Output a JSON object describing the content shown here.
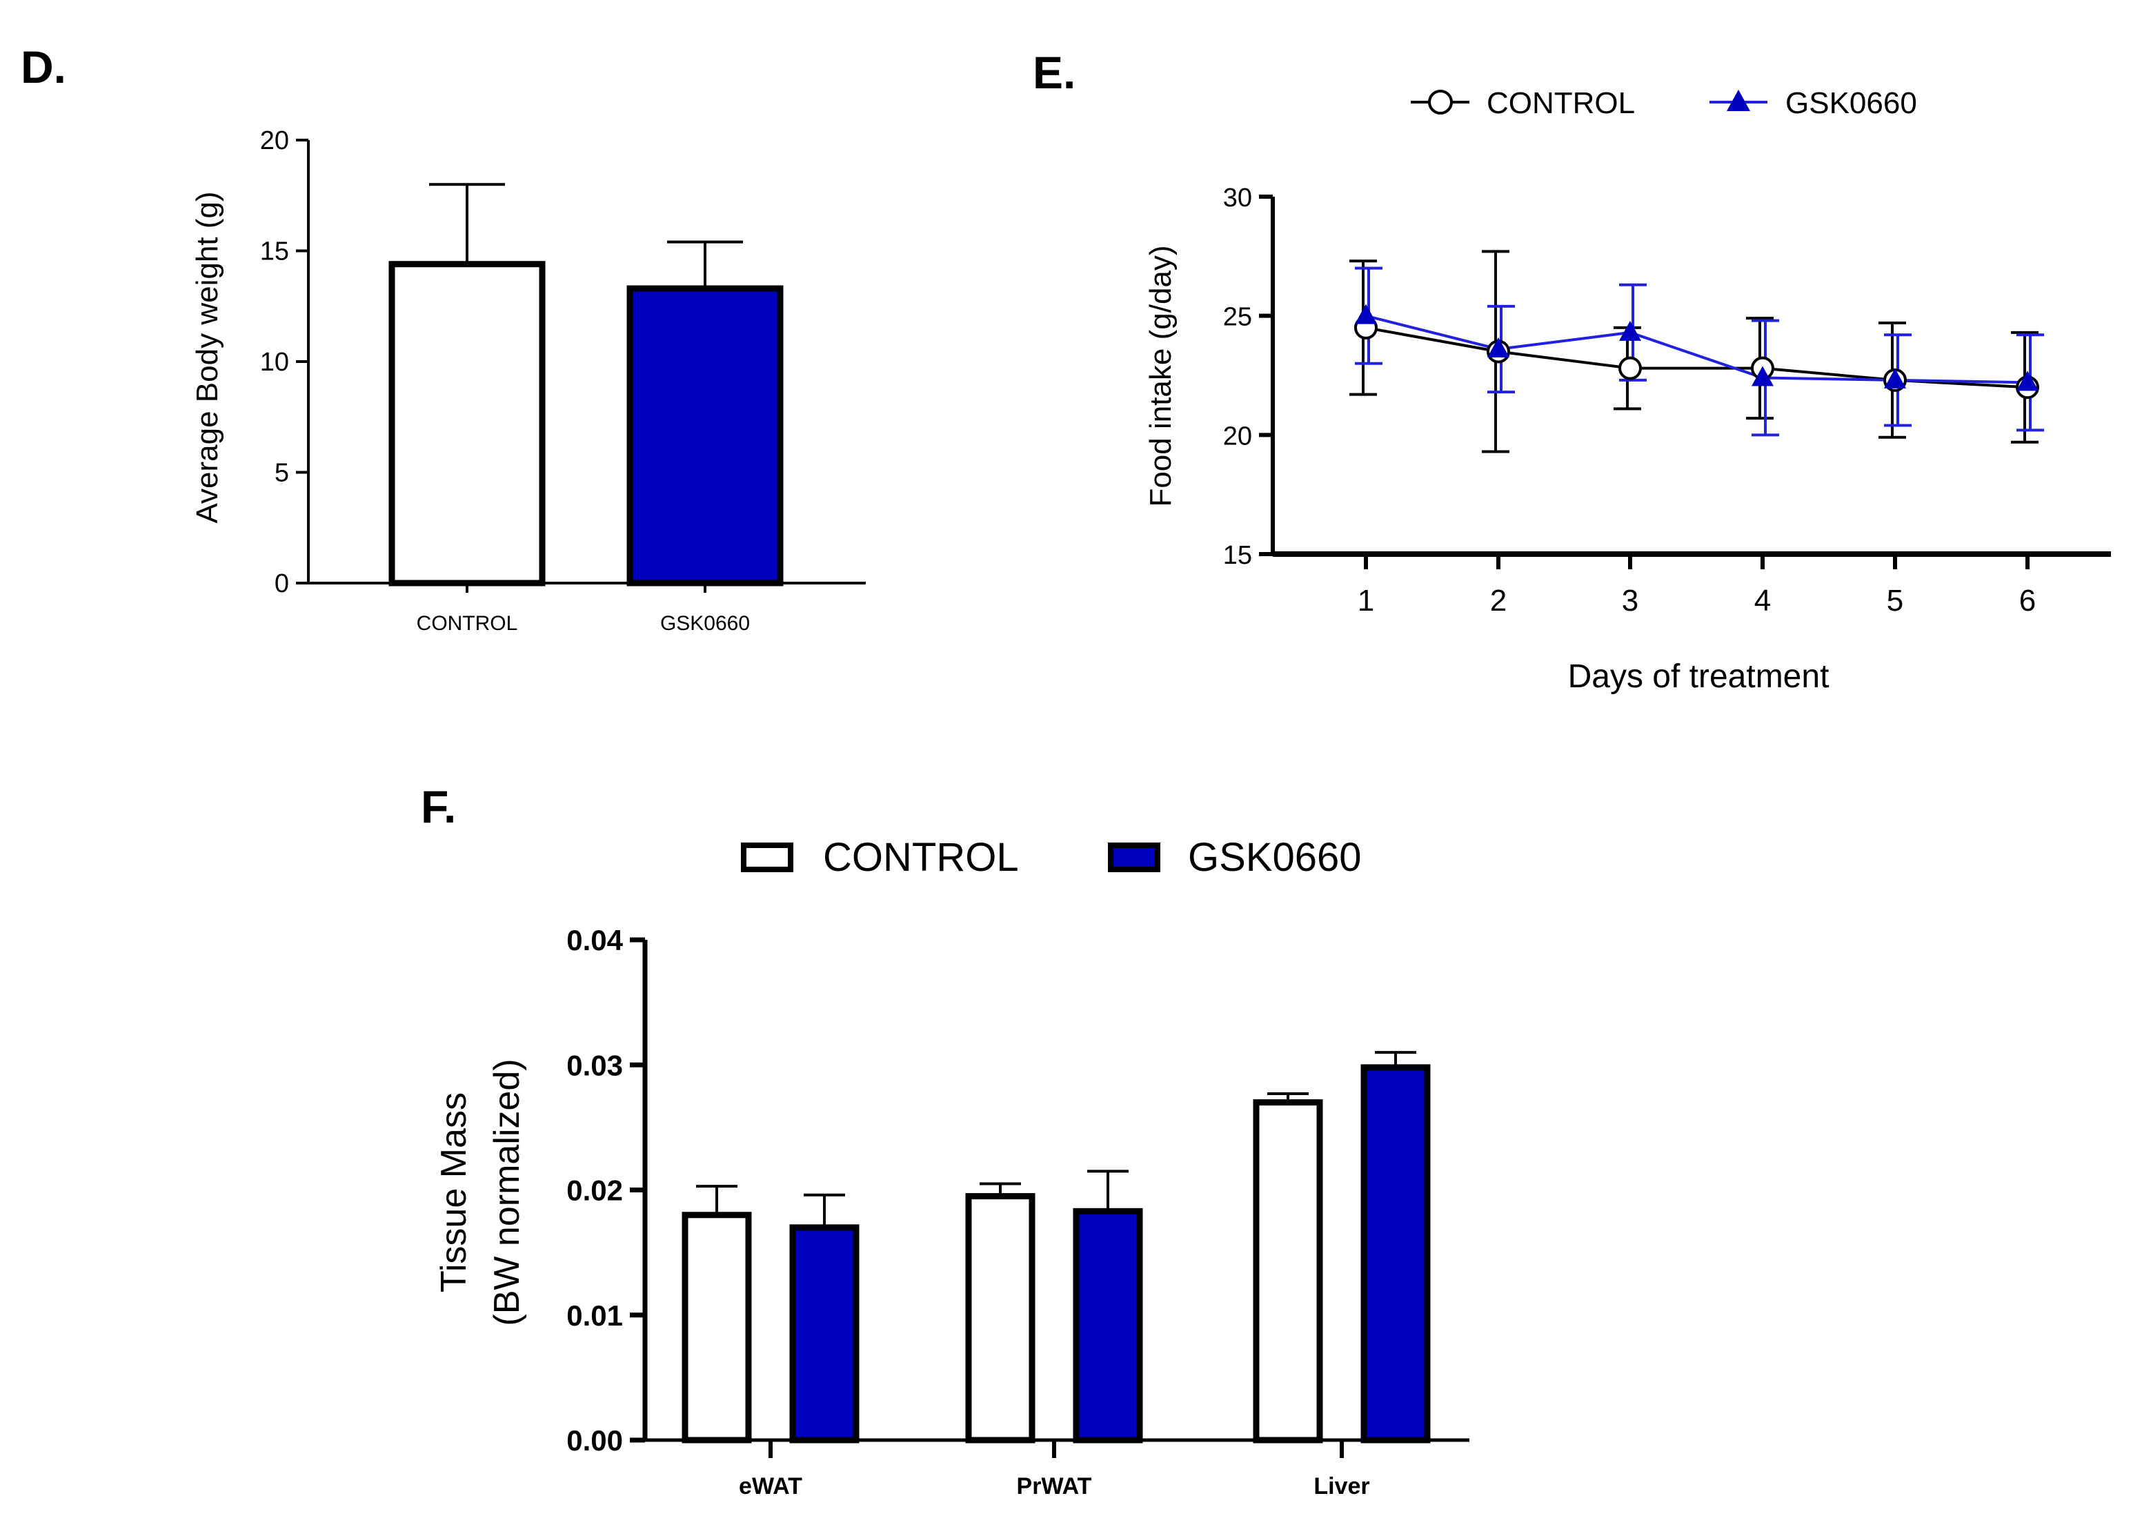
{
  "colors": {
    "control_fill": "#ffffff",
    "gsk_fill": "#0000c0",
    "gsk_line": "#2222dd",
    "axis": "#000000",
    "control_line": "#000000"
  },
  "chart_data": [
    {
      "panel": "D.",
      "type": "bar",
      "title": "",
      "xlabel": "",
      "ylabel": "Average Body weight  (g)",
      "ylim": [
        0,
        20
      ],
      "yticks": [
        "0",
        "5",
        "10",
        "15",
        "20"
      ],
      "categories": [
        "CONTROL",
        "GSK0660"
      ],
      "values": [
        14.4,
        13.3
      ],
      "errors": [
        3.6,
        2.1
      ],
      "grid": false,
      "legend": "none"
    },
    {
      "panel": "E.",
      "type": "line",
      "title": "",
      "xlabel": "Days of treatment",
      "ylabel": "Food intake (g/day)",
      "ylim": [
        15,
        30
      ],
      "yticks": [
        "15",
        "20",
        "25",
        "30"
      ],
      "x": [
        "1",
        "2",
        "3",
        "4",
        "5",
        "6"
      ],
      "series": [
        {
          "name": "CONTROL",
          "marker": "open-circle",
          "values": [
            24.5,
            23.5,
            22.8,
            22.8,
            22.3,
            22.0
          ],
          "errors": [
            2.8,
            4.2,
            1.7,
            2.1,
            2.4,
            2.3
          ]
        },
        {
          "name": "GSK0660",
          "marker": "filled-triangle",
          "values": [
            25.0,
            23.6,
            24.3,
            22.4,
            22.3,
            22.2
          ],
          "errors": [
            2.0,
            1.8,
            2.0,
            2.4,
            1.9,
            2.0
          ]
        }
      ],
      "grid": false,
      "legend": "top"
    },
    {
      "panel": "F.",
      "type": "bar",
      "title": "",
      "xlabel": "",
      "ylabel": "Tissue Mass",
      "ylabel2": "(BW normalized)",
      "ylim": [
        0,
        0.04
      ],
      "yticks": [
        "0.00",
        "0.01",
        "0.02",
        "0.03",
        "0.04"
      ],
      "categories": [
        "eWAT",
        "PrWAT",
        "Liver"
      ],
      "series": [
        {
          "name": "CONTROL",
          "values": [
            0.018,
            0.0195,
            0.027
          ],
          "errors": [
            0.0023,
            0.001,
            0.0007
          ]
        },
        {
          "name": "GSK0660",
          "values": [
            0.017,
            0.0183,
            0.0298
          ],
          "errors": [
            0.0026,
            0.0032,
            0.0012
          ]
        }
      ],
      "grid": false,
      "legend": "top"
    }
  ]
}
